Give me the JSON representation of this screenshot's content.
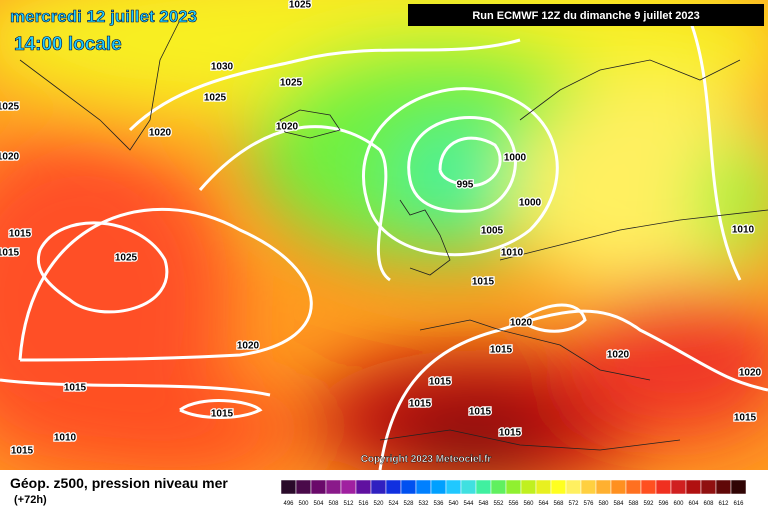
{
  "header": {
    "date": "mercredi 12 juillet 2023",
    "time": "14:00 locale",
    "run": "Run ECMWF 12Z du dimanche 9 juillet 2023"
  },
  "isobar_labels": [
    "1025",
    "1030",
    "1025",
    "1025",
    "1025",
    "1020",
    "1020",
    "1020",
    "1000",
    "995",
    "1000",
    "1015",
    "1015",
    "1025",
    "1005",
    "1010",
    "1015",
    "1010",
    "1020",
    "1020",
    "1015",
    "1020",
    "1015",
    "1015",
    "1020",
    "1015",
    "1015",
    "1015",
    "1015",
    "1010",
    "1015",
    "1015"
  ],
  "copyright": "Copyright 2023 Meteociel.fr",
  "footer": {
    "title": "Géop. z500, pression niveau mer",
    "lead": "(+72h)"
  },
  "scale": {
    "labels": [
      496,
      500,
      504,
      508,
      512,
      516,
      520,
      524,
      528,
      532,
      536,
      540,
      544,
      548,
      552,
      556,
      560,
      564,
      568,
      572,
      576,
      580,
      584,
      588,
      592,
      596,
      600,
      604,
      608,
      612,
      616
    ],
    "colors": [
      "#2a0a2a",
      "#4a0a4a",
      "#6a0a6a",
      "#8a1a8a",
      "#a020a0",
      "#6010a0",
      "#3020c0",
      "#1030e0",
      "#0050f0",
      "#0080ff",
      "#00a0ff",
      "#20c8ff",
      "#40e0e0",
      "#40f0a0",
      "#60f060",
      "#90f030",
      "#c0f020",
      "#e8f020",
      "#ffff20",
      "#fff060",
      "#ffd040",
      "#ffb030",
      "#ff9020",
      "#ff7020",
      "#ff5020",
      "#f03020",
      "#d02020",
      "#b01010",
      "#901010",
      "#600808",
      "#300404"
    ]
  }
}
